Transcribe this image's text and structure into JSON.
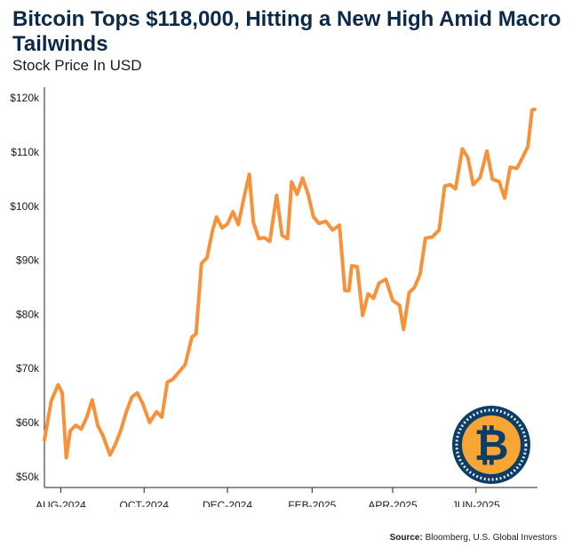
{
  "header": {
    "title": "Bitcoin Tops $118,000, Hitting a New High Amid Macro Tailwinds",
    "subtitle": "Stock Price In USD"
  },
  "footer": {
    "source_label": "Source:",
    "source_text": "Bloomberg, U.S. Global Investors"
  },
  "colors": {
    "line": "#f7923a",
    "axis": "#222222",
    "coin_outer": "#0b3d66",
    "coin_ring": "#e8e8e8",
    "coin_face": "#f7a534",
    "coin_symbol": "#0b3d66"
  },
  "chart_data": {
    "type": "line",
    "title": "Bitcoin Tops $118,000, Hitting a New High Amid Macro Tailwinds",
    "subtitle": "Stock Price In USD",
    "xlabel": "",
    "ylabel": "",
    "ylim": [
      48000,
      122000
    ],
    "xlim": [
      "2024-07-20",
      "2025-07-16"
    ],
    "grid": false,
    "legend": "none",
    "y_ticks": [
      {
        "value": 50000,
        "label": "$50k"
      },
      {
        "value": 60000,
        "label": "$60k"
      },
      {
        "value": 70000,
        "label": "$70k"
      },
      {
        "value": 80000,
        "label": "$80k"
      },
      {
        "value": 90000,
        "label": "$90k"
      },
      {
        "value": 100000,
        "label": "$100k"
      },
      {
        "value": 110000,
        "label": "$110k"
      },
      {
        "value": 120000,
        "label": "$120k"
      }
    ],
    "x_ticks": [
      {
        "date": "2024-08-01",
        "label": "AUG-2024"
      },
      {
        "date": "2024-10-01",
        "label": "OCT-2024"
      },
      {
        "date": "2024-12-01",
        "label": "DEC-2024"
      },
      {
        "date": "2025-02-01",
        "label": "FEB-2025"
      },
      {
        "date": "2025-04-01",
        "label": "APR-2025"
      },
      {
        "date": "2025-06-01",
        "label": "JUN-2025"
      }
    ],
    "series": [
      {
        "x": [
          "2024-07-20",
          "2024-07-25",
          "2024-07-30",
          "2024-08-02",
          "2024-08-05",
          "2024-08-08",
          "2024-08-12",
          "2024-08-16",
          "2024-08-20",
          "2024-08-24",
          "2024-08-28",
          "2024-09-01",
          "2024-09-06",
          "2024-09-10",
          "2024-09-14",
          "2024-09-18",
          "2024-09-22",
          "2024-09-26",
          "2024-09-30",
          "2024-10-05",
          "2024-10-10",
          "2024-10-14",
          "2024-10-18",
          "2024-10-22",
          "2024-10-27",
          "2024-10-31",
          "2024-11-05",
          "2024-11-08",
          "2024-11-12",
          "2024-11-16",
          "2024-11-20",
          "2024-11-23",
          "2024-11-27",
          "2024-12-01",
          "2024-12-05",
          "2024-12-09",
          "2024-12-13",
          "2024-12-17",
          "2024-12-20",
          "2024-12-24",
          "2024-12-28",
          "2025-01-01",
          "2025-01-06",
          "2025-01-10",
          "2025-01-14",
          "2025-01-17",
          "2025-01-21",
          "2025-01-25",
          "2025-01-29",
          "2025-02-02",
          "2025-02-06",
          "2025-02-11",
          "2025-02-16",
          "2025-02-21",
          "2025-02-25",
          "2025-02-28",
          "2025-03-02",
          "2025-03-06",
          "2025-03-10",
          "2025-03-14",
          "2025-03-18",
          "2025-03-22",
          "2025-03-27",
          "2025-04-01",
          "2025-04-06",
          "2025-04-09",
          "2025-04-13",
          "2025-04-17",
          "2025-04-21",
          "2025-04-25",
          "2025-04-30",
          "2025-05-05",
          "2025-05-09",
          "2025-05-13",
          "2025-05-17",
          "2025-05-22",
          "2025-05-26",
          "2025-05-30",
          "2025-06-04",
          "2025-06-09",
          "2025-06-13",
          "2025-06-18",
          "2025-06-22",
          "2025-06-26",
          "2025-07-01",
          "2025-07-05",
          "2025-07-09",
          "2025-07-12",
          "2025-07-14"
        ],
        "values": [
          56800,
          64000,
          67000,
          65500,
          53500,
          58500,
          59500,
          58800,
          61000,
          64200,
          59500,
          57500,
          54000,
          56000,
          58600,
          62000,
          64700,
          65500,
          63500,
          60000,
          62000,
          61000,
          67500,
          68000,
          69500,
          70700,
          75800,
          76400,
          89400,
          90500,
          95400,
          98000,
          96000,
          96700,
          99000,
          96600,
          101500,
          105900,
          97000,
          94000,
          94200,
          93500,
          102000,
          94600,
          94000,
          104500,
          102200,
          105200,
          102300,
          98000,
          96800,
          97200,
          95600,
          96500,
          84400,
          84400,
          89000,
          88800,
          79800,
          83800,
          83000,
          85800,
          86500,
          82600,
          81700,
          77200,
          84000,
          85000,
          87400,
          94100,
          94300,
          95600,
          103700,
          104000,
          103200,
          110600,
          109000,
          104000,
          105300,
          110200,
          105000,
          104500,
          101500,
          107200,
          107000,
          109000,
          111000,
          117800,
          117900
        ]
      }
    ]
  }
}
